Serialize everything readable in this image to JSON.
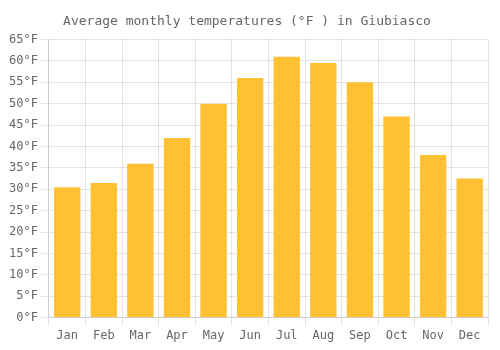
{
  "chart_data": {
    "type": "bar",
    "title": "Average monthly temperatures (°F ) in Giubiasco",
    "categories": [
      "Jan",
      "Feb",
      "Mar",
      "Apr",
      "May",
      "Jun",
      "Jul",
      "Aug",
      "Sep",
      "Oct",
      "Nov",
      "Dec"
    ],
    "values": [
      30.5,
      31.5,
      36.0,
      42.0,
      50.0,
      56.0,
      61.0,
      59.5,
      55.0,
      47.0,
      38.0,
      32.5
    ],
    "color": "#FFC033",
    "ylim": [
      0,
      65
    ],
    "yticks": [
      {
        "value": 0,
        "label": "0°F"
      },
      {
        "value": 5,
        "label": "5°F"
      },
      {
        "value": 10,
        "label": "10°F"
      },
      {
        "value": 15,
        "label": "15°F"
      },
      {
        "value": 20,
        "label": "20°F"
      },
      {
        "value": 25,
        "label": "25°F"
      },
      {
        "value": 30,
        "label": "30°F"
      },
      {
        "value": 35,
        "label": "35°F"
      },
      {
        "value": 40,
        "label": "40°F"
      },
      {
        "value": 45,
        "label": "45°F"
      },
      {
        "value": 50,
        "label": "50°F"
      },
      {
        "value": 55,
        "label": "55°F"
      },
      {
        "value": 60,
        "label": "60°F"
      },
      {
        "value": 65,
        "label": "65°F"
      }
    ],
    "grid": true
  }
}
